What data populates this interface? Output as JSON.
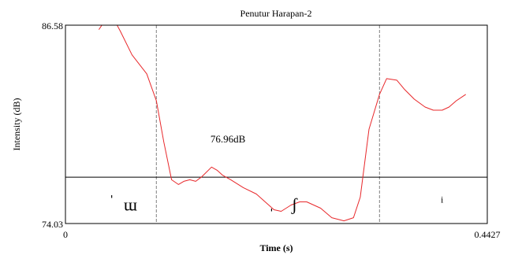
{
  "chart_data": {
    "type": "line",
    "title": "Penutur Harapan-2",
    "xlabel": "Time (s)",
    "ylabel": "Intensity (dB)",
    "xlim": [
      0,
      0.4427
    ],
    "ylim": [
      74.03,
      86.58
    ],
    "x_tick_labels": [
      "0",
      "0.4427"
    ],
    "y_tick_labels": [
      "74.03",
      "86.58"
    ],
    "annotation": "76.96dB",
    "reference_level_db": 76.96,
    "boundaries": [
      0.0954,
      0.3296
    ],
    "segments": [
      {
        "label": "ɯ",
        "x": 0.0682
      },
      {
        "label": "ʃ",
        "x": 0.2403
      },
      {
        "label": "i",
        "x": 0.3953
      }
    ],
    "segment_marks": [
      {
        "label": "ˈ",
        "x": 0.0485
      },
      {
        "label": "ˌ",
        "x": 0.2163
      }
    ],
    "series": [
      {
        "color": "#e8282b",
        "x": [
          0.0351,
          0.0406,
          0.0474,
          0.0531,
          0.0576,
          0.0698,
          0.0853,
          0.0954,
          0.1032,
          0.1114,
          0.1186,
          0.1242,
          0.1305,
          0.1367,
          0.1432,
          0.1533,
          0.1591,
          0.1647,
          0.1735,
          0.1867,
          0.2003,
          0.2189,
          0.2264,
          0.2368,
          0.2458,
          0.2532,
          0.2678,
          0.2795,
          0.2923,
          0.3023,
          0.3094,
          0.3186,
          0.3296,
          0.337,
          0.3478,
          0.3561,
          0.3661,
          0.3774,
          0.386,
          0.3954,
          0.4026,
          0.4102,
          0.4201
        ],
        "y": [
          86.3,
          86.8,
          87.2,
          86.7,
          86.2,
          84.7,
          83.5,
          81.8,
          79.2,
          76.8,
          76.5,
          76.7,
          76.8,
          76.7,
          77.0,
          77.6,
          77.4,
          77.1,
          76.8,
          76.3,
          75.9,
          74.9,
          74.8,
          75.2,
          75.4,
          75.4,
          75.0,
          74.4,
          74.2,
          74.4,
          75.7,
          80.0,
          82.2,
          83.2,
          83.1,
          82.5,
          81.9,
          81.4,
          81.2,
          81.2,
          81.4,
          81.8,
          82.2
        ]
      }
    ],
    "grid": false,
    "legend": "none"
  }
}
